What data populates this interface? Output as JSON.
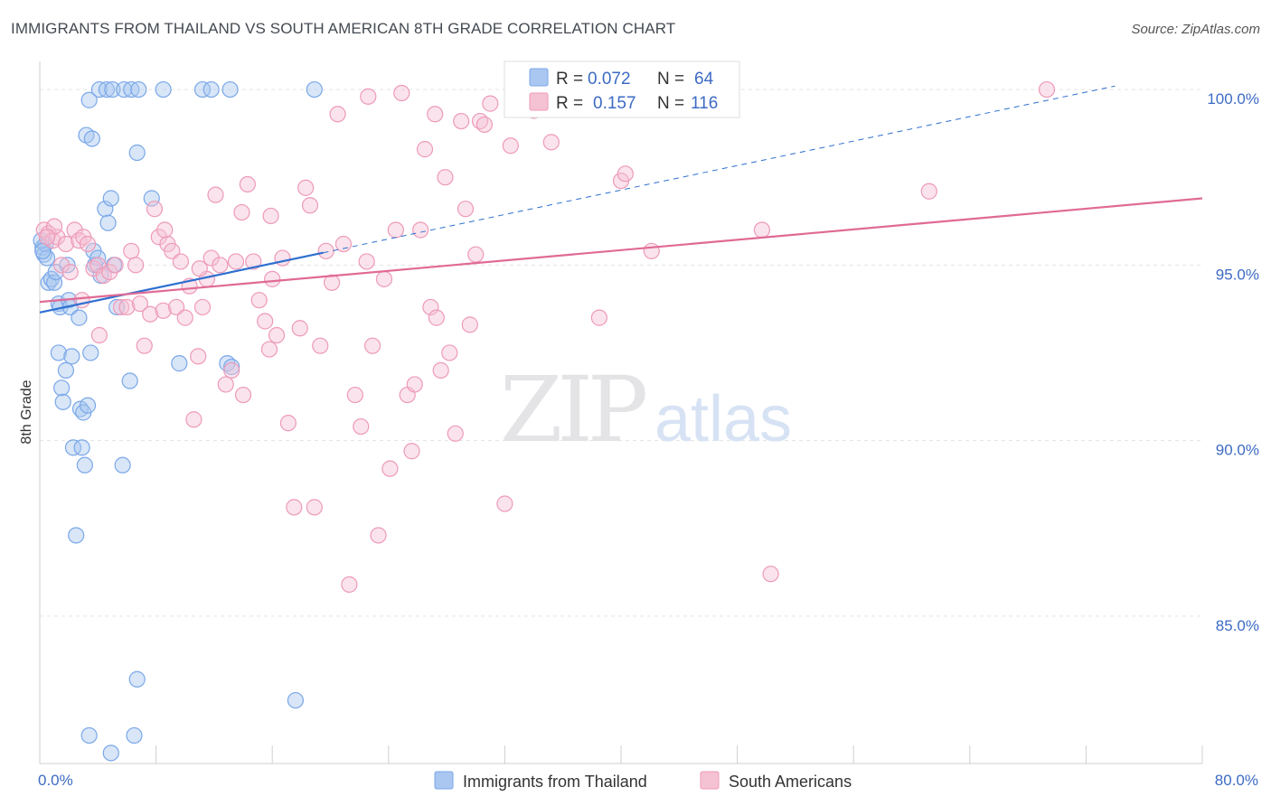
{
  "title": "IMMIGRANTS FROM THAILAND VS SOUTH AMERICAN 8TH GRADE CORRELATION CHART",
  "source": "Source: ZipAtlas.com",
  "watermark": {
    "zip": "ZIP",
    "atlas": "atlas"
  },
  "chart_data": {
    "type": "scatter",
    "xlabel": "",
    "ylabel": "8th Grade",
    "xlim": [
      0,
      80
    ],
    "ylim": [
      80.8,
      100.8
    ],
    "x_tick_labels": [
      {
        "value": 0,
        "label": "0.0%"
      },
      {
        "value": 80,
        "label": "80.0%"
      }
    ],
    "y_ticks": [
      {
        "value": 85,
        "label": "85.0%"
      },
      {
        "value": 90,
        "label": "90.0%"
      },
      {
        "value": 95,
        "label": "95.0%"
      },
      {
        "value": 100,
        "label": "100.0%"
      }
    ],
    "legend": {
      "position": "top-center",
      "entries": [
        {
          "r_label": "R =",
          "r_value": "0.072",
          "n_label": "N =",
          "n_value": "64"
        },
        {
          "r_label": "R =",
          "r_value": "0.157",
          "n_label": "N =",
          "n_value": "116"
        }
      ]
    },
    "series": [
      {
        "name": "Immigrants from Thailand",
        "color": "#7aa7e8",
        "fill": "#a9c7f0",
        "line_color": "#2e6fd0",
        "trend": {
          "x0": 0,
          "y0": 93.65,
          "x1": 19.5,
          "y1": 95.35,
          "dash_to_x": 74,
          "dash_to_y": 100.1
        },
        "points": [
          [
            0.2,
            95.5
          ],
          [
            0.3,
            95.3
          ],
          [
            0.4,
            95.6
          ],
          [
            0.5,
            95.2
          ],
          [
            0.6,
            94.5
          ],
          [
            0.8,
            94.6
          ],
          [
            1.0,
            94.5
          ],
          [
            1.1,
            94.8
          ],
          [
            1.3,
            93.9
          ],
          [
            1.3,
            92.5
          ],
          [
            1.4,
            93.8
          ],
          [
            1.5,
            91.5
          ],
          [
            1.6,
            91.1
          ],
          [
            1.8,
            92.0
          ],
          [
            1.9,
            95.0
          ],
          [
            2.0,
            94.0
          ],
          [
            2.1,
            93.8
          ],
          [
            2.2,
            92.4
          ],
          [
            2.3,
            89.8
          ],
          [
            2.5,
            87.3
          ],
          [
            2.7,
            93.5
          ],
          [
            2.8,
            90.9
          ],
          [
            2.9,
            89.8
          ],
          [
            3.0,
            90.8
          ],
          [
            3.1,
            89.3
          ],
          [
            3.3,
            91.0
          ],
          [
            3.5,
            92.5
          ],
          [
            3.7,
            95.4
          ],
          [
            3.8,
            95.0
          ],
          [
            4.0,
            95.2
          ],
          [
            4.2,
            94.7
          ],
          [
            4.5,
            96.6
          ],
          [
            4.7,
            96.2
          ],
          [
            4.9,
            96.9
          ],
          [
            5.1,
            95.0
          ],
          [
            5.3,
            93.8
          ],
          [
            5.7,
            89.3
          ],
          [
            6.2,
            91.7
          ],
          [
            6.7,
            98.2
          ],
          [
            7.7,
            96.9
          ],
          [
            9.6,
            92.2
          ],
          [
            12.9,
            92.2
          ],
          [
            13.2,
            92.1
          ],
          [
            17.6,
            82.6
          ],
          [
            3.2,
            98.7
          ],
          [
            3.6,
            98.6
          ],
          [
            3.4,
            99.7
          ],
          [
            4.1,
            100.0
          ],
          [
            4.6,
            100.0
          ],
          [
            5.0,
            100.0
          ],
          [
            5.8,
            100.0
          ],
          [
            6.3,
            100.0
          ],
          [
            6.8,
            100.0
          ],
          [
            8.5,
            100.0
          ],
          [
            11.2,
            100.0
          ],
          [
            11.8,
            100.0
          ],
          [
            13.1,
            100.0
          ],
          [
            18.9,
            100.0
          ],
          [
            6.7,
            83.2
          ],
          [
            6.5,
            81.6
          ],
          [
            3.4,
            81.6
          ],
          [
            4.9,
            81.1
          ],
          [
            0.1,
            95.7
          ],
          [
            0.2,
            95.4
          ]
        ]
      },
      {
        "name": "South Americans",
        "color": "#ee9ab8",
        "fill": "#f5c2d4",
        "line_color": "#e06a95",
        "trend": {
          "x0": 0,
          "y0": 93.95,
          "x1": 80,
          "y1": 96.9
        },
        "points": [
          [
            0.3,
            96.0
          ],
          [
            0.6,
            95.9
          ],
          [
            0.9,
            95.7
          ],
          [
            1.2,
            95.8
          ],
          [
            1.5,
            95.0
          ],
          [
            1.8,
            95.6
          ],
          [
            2.1,
            94.8
          ],
          [
            2.4,
            96.0
          ],
          [
            2.7,
            95.7
          ],
          [
            3.0,
            95.8
          ],
          [
            3.3,
            95.6
          ],
          [
            3.7,
            94.9
          ],
          [
            4.0,
            95.0
          ],
          [
            4.4,
            94.7
          ],
          [
            4.8,
            94.8
          ],
          [
            5.2,
            95.0
          ],
          [
            5.6,
            93.8
          ],
          [
            6.0,
            93.8
          ],
          [
            6.3,
            95.4
          ],
          [
            6.6,
            95.0
          ],
          [
            6.9,
            93.9
          ],
          [
            7.2,
            92.7
          ],
          [
            7.6,
            93.6
          ],
          [
            7.9,
            96.6
          ],
          [
            8.2,
            95.8
          ],
          [
            8.5,
            93.7
          ],
          [
            8.8,
            95.6
          ],
          [
            9.1,
            95.4
          ],
          [
            9.4,
            93.8
          ],
          [
            9.7,
            95.1
          ],
          [
            10.0,
            93.5
          ],
          [
            10.3,
            94.4
          ],
          [
            10.6,
            90.6
          ],
          [
            10.9,
            92.4
          ],
          [
            11.2,
            93.8
          ],
          [
            11.5,
            94.6
          ],
          [
            11.8,
            95.2
          ],
          [
            12.1,
            97.0
          ],
          [
            12.4,
            95.0
          ],
          [
            12.8,
            91.6
          ],
          [
            13.2,
            92.0
          ],
          [
            13.5,
            95.1
          ],
          [
            13.9,
            96.5
          ],
          [
            14.3,
            97.3
          ],
          [
            14.7,
            95.1
          ],
          [
            15.1,
            94.0
          ],
          [
            15.5,
            93.4
          ],
          [
            15.9,
            96.4
          ],
          [
            16.3,
            93.0
          ],
          [
            16.7,
            95.2
          ],
          [
            17.1,
            90.5
          ],
          [
            17.5,
            88.1
          ],
          [
            17.9,
            93.2
          ],
          [
            18.3,
            97.2
          ],
          [
            18.6,
            96.7
          ],
          [
            18.9,
            88.1
          ],
          [
            19.3,
            92.7
          ],
          [
            19.7,
            95.4
          ],
          [
            20.1,
            94.5
          ],
          [
            20.5,
            99.3
          ],
          [
            20.9,
            95.6
          ],
          [
            21.3,
            85.9
          ],
          [
            21.7,
            91.3
          ],
          [
            22.1,
            90.4
          ],
          [
            22.5,
            95.1
          ],
          [
            22.9,
            92.7
          ],
          [
            23.3,
            87.3
          ],
          [
            23.7,
            94.6
          ],
          [
            24.1,
            89.2
          ],
          [
            24.5,
            96.0
          ],
          [
            24.9,
            99.9
          ],
          [
            25.3,
            91.3
          ],
          [
            25.6,
            89.7
          ],
          [
            25.8,
            91.6
          ],
          [
            26.2,
            96.0
          ],
          [
            26.5,
            98.3
          ],
          [
            26.9,
            93.8
          ],
          [
            27.3,
            93.5
          ],
          [
            27.6,
            92.0
          ],
          [
            27.9,
            97.5
          ],
          [
            28.2,
            92.5
          ],
          [
            28.6,
            90.2
          ],
          [
            29.0,
            99.1
          ],
          [
            29.3,
            96.6
          ],
          [
            29.6,
            93.3
          ],
          [
            30.0,
            95.3
          ],
          [
            30.3,
            99.1
          ],
          [
            30.6,
            99.0
          ],
          [
            31.0,
            99.6
          ],
          [
            32.0,
            88.2
          ],
          [
            32.4,
            98.4
          ],
          [
            33.0,
            100.0
          ],
          [
            34.0,
            99.4
          ],
          [
            35.2,
            98.5
          ],
          [
            36.1,
            99.6
          ],
          [
            38.5,
            99.9
          ],
          [
            38.5,
            93.5
          ],
          [
            40.0,
            97.4
          ],
          [
            40.3,
            97.6
          ],
          [
            42.1,
            95.4
          ],
          [
            44.5,
            99.8
          ],
          [
            49.7,
            96.0
          ],
          [
            50.3,
            86.2
          ],
          [
            61.2,
            97.1
          ],
          [
            69.3,
            100.0
          ],
          [
            15.8,
            92.6
          ],
          [
            27.2,
            99.3
          ],
          [
            22.6,
            99.8
          ],
          [
            8.6,
            96.0
          ],
          [
            4.1,
            93.0
          ],
          [
            2.9,
            94.0
          ],
          [
            1.0,
            96.1
          ],
          [
            0.5,
            95.8
          ],
          [
            11.0,
            94.9
          ],
          [
            14.0,
            91.3
          ],
          [
            16.0,
            94.6
          ]
        ]
      }
    ]
  }
}
